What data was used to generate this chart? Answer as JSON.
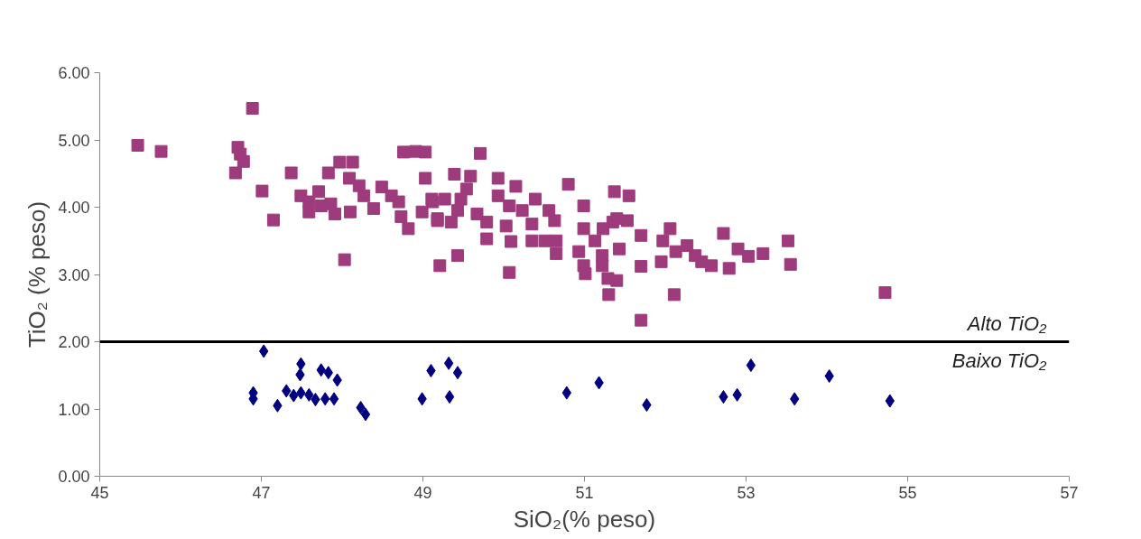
{
  "chart_data": {
    "type": "scatter",
    "xlabel": "SiO₂(% peso)",
    "ylabel": "TiO₂ (% peso)",
    "xlim": [
      45,
      57
    ],
    "ylim": [
      0,
      6
    ],
    "xticks": [
      45,
      47,
      49,
      51,
      53,
      55,
      57
    ],
    "yticks": [
      {
        "value": 0,
        "label": "0.00"
      },
      {
        "value": 1,
        "label": "1.00"
      },
      {
        "value": 2,
        "label": "2.00"
      },
      {
        "value": 3,
        "label": "3.00"
      },
      {
        "value": 4,
        "label": "4.00"
      },
      {
        "value": 5,
        "label": "5.00"
      },
      {
        "value": 6,
        "label": "6.00"
      }
    ],
    "grid": false,
    "series": [
      {
        "color": "#9e3b7c",
        "marker": "square",
        "x": [
          45.47,
          45.76,
          46.89,
          46.71,
          46.74,
          46.78,
          46.68,
          47.01,
          47.15,
          47.37,
          48.03,
          47.83,
          47.97,
          48.13,
          48.09,
          47.49,
          47.59,
          47.71,
          47.74,
          47.86,
          47.59,
          47.91,
          48.1,
          48.21,
          48.27,
          48.39,
          48.49,
          48.61,
          48.7,
          48.73,
          48.82,
          48.76,
          48.91,
          49.03,
          49.03,
          48.99,
          49.12,
          49.18,
          49.21,
          49.71,
          49.39,
          49.59,
          49.93,
          50.15,
          50.8,
          51.37,
          51.55,
          50.99,
          49.11,
          49.27,
          49.47,
          49.54,
          49.18,
          49.35,
          49.43,
          49.67,
          49.79,
          49.79,
          49.93,
          50.07,
          50.23,
          50.39,
          50.03,
          50.09,
          50.35,
          50.35,
          50.51,
          50.56,
          50.63,
          50.65,
          50.65,
          49.43,
          50.07,
          50.99,
          50.93,
          50.99,
          51.01,
          51.13,
          51.23,
          51.22,
          51.22,
          51.35,
          51.4,
          51.53,
          51.43,
          51.29,
          51.4,
          51.3,
          51.7,
          51.7,
          51.7,
          51.95,
          51.97,
          52.06,
          52.11,
          52.13,
          52.27,
          52.37,
          52.45,
          52.57,
          52.72,
          52.79,
          52.9,
          53.03,
          53.21,
          53.52,
          53.55,
          54.72
        ],
        "values": [
          4.92,
          4.83,
          5.47,
          4.89,
          4.79,
          4.68,
          4.51,
          4.24,
          3.81,
          4.51,
          3.22,
          4.51,
          4.67,
          4.67,
          4.43,
          4.17,
          4.08,
          4.23,
          4.02,
          4.05,
          3.93,
          3.9,
          3.93,
          4.32,
          4.17,
          3.98,
          4.3,
          4.17,
          4.08,
          3.86,
          3.68,
          4.82,
          4.83,
          4.82,
          4.43,
          3.93,
          4.08,
          3.8,
          3.13,
          4.8,
          4.49,
          4.46,
          4.43,
          4.31,
          4.34,
          4.23,
          4.17,
          4.02,
          4.12,
          4.12,
          4.12,
          4.27,
          3.83,
          3.78,
          3.95,
          3.9,
          3.78,
          3.53,
          4.17,
          4.02,
          3.95,
          4.12,
          3.72,
          3.49,
          3.75,
          3.5,
          3.5,
          3.95,
          3.8,
          3.5,
          3.31,
          3.28,
          3.03,
          3.68,
          3.34,
          3.13,
          3.01,
          3.5,
          3.68,
          3.28,
          3.13,
          3.78,
          3.83,
          3.8,
          3.38,
          2.94,
          2.91,
          2.7,
          3.58,
          3.12,
          2.32,
          3.19,
          3.5,
          3.68,
          2.7,
          3.34,
          3.43,
          3.28,
          3.19,
          3.13,
          3.61,
          3.09,
          3.38,
          3.27,
          3.31,
          3.5,
          3.15,
          2.73
        ]
      },
      {
        "color": "#000080",
        "marker": "diamond",
        "x": [
          47.03,
          47.49,
          47.48,
          47.74,
          47.83,
          47.94,
          46.9,
          46.9,
          47.2,
          47.31,
          47.4,
          47.49,
          47.59,
          47.67,
          47.79,
          47.9,
          48.23,
          48.29,
          49.1,
          49.32,
          49.43,
          48.99,
          49.33,
          50.78,
          51.18,
          51.77,
          53.06,
          52.72,
          52.89,
          53.6,
          54.03,
          54.78
        ],
        "values": [
          1.86,
          1.67,
          1.51,
          1.58,
          1.54,
          1.43,
          1.24,
          1.15,
          1.05,
          1.27,
          1.2,
          1.24,
          1.21,
          1.14,
          1.15,
          1.15,
          1.02,
          0.92,
          1.57,
          1.68,
          1.54,
          1.15,
          1.18,
          1.24,
          1.39,
          1.06,
          1.65,
          1.18,
          1.21,
          1.15,
          1.49,
          1.12
        ]
      }
    ],
    "ref_lines": [
      {
        "axis": "y",
        "value": 2,
        "color": "#000000",
        "line_style": "solid"
      }
    ],
    "annotations": [
      "Alto TiO₂",
      "Baixo TiO₂"
    ]
  }
}
